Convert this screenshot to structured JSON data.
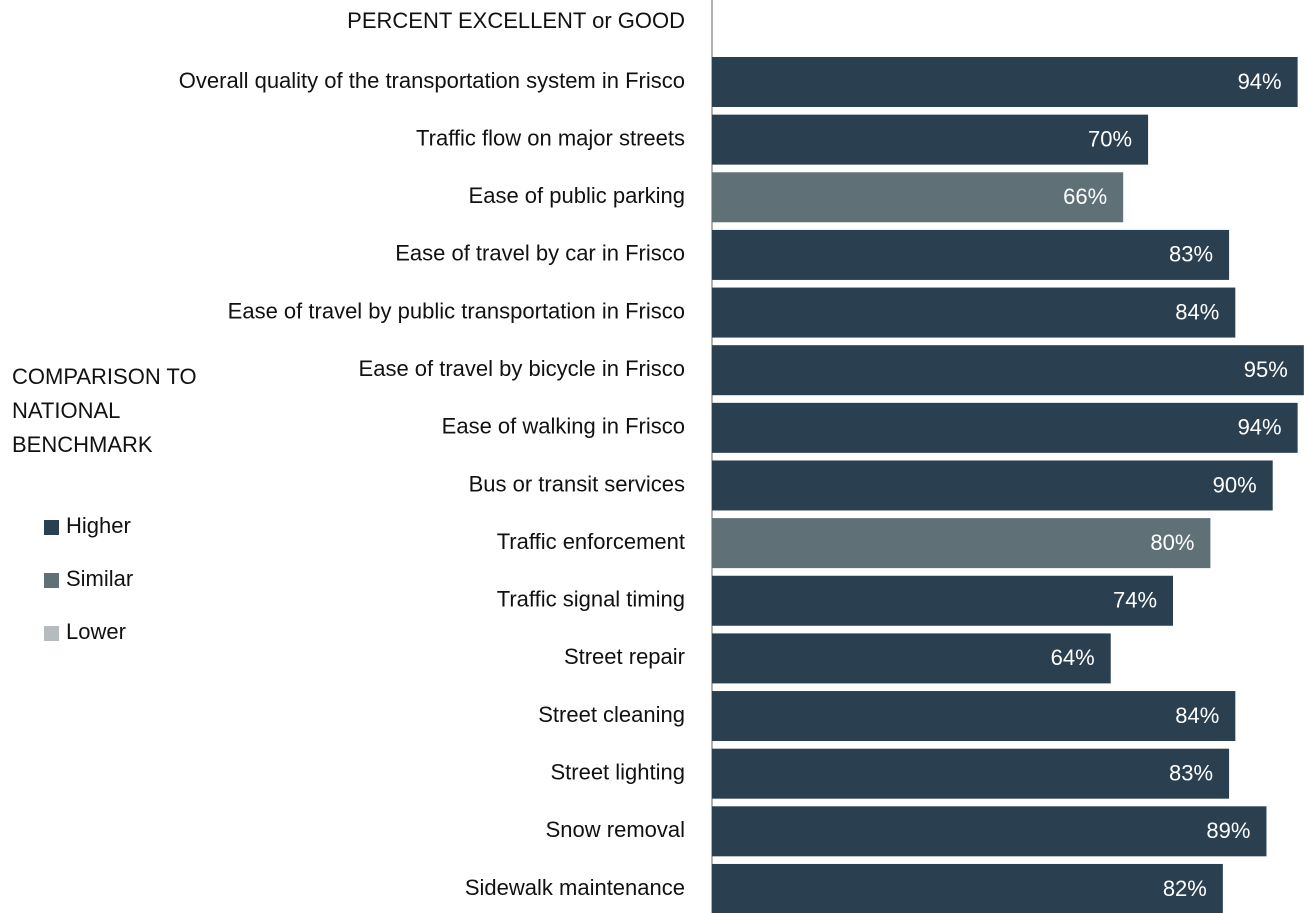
{
  "chart_data": {
    "type": "bar",
    "orientation": "horizontal",
    "title": "PERCENT EXCELLENT or GOOD",
    "categories": [
      "Overall quality of the transportation system in Frisco",
      "Traffic flow on major streets",
      "Ease of public parking",
      "Ease of travel by car in Frisco",
      "Ease of travel by public transportation in Frisco",
      "Ease of travel by bicycle in Frisco",
      "Ease of walking in Frisco",
      "Bus or transit services",
      "Traffic enforcement",
      "Traffic signal timing",
      "Street repair",
      "Street cleaning",
      "Street lighting",
      "Snow removal",
      "Sidewalk maintenance"
    ],
    "values": [
      94,
      70,
      66,
      83,
      84,
      95,
      94,
      90,
      80,
      74,
      64,
      84,
      83,
      89,
      82
    ],
    "value_labels": [
      "94%",
      "70%",
      "66%",
      "83%",
      "84%",
      "95%",
      "94%",
      "90%",
      "80%",
      "74%",
      "64%",
      "84%",
      "83%",
      "89%",
      "82%"
    ],
    "comparison": [
      "Higher",
      "Higher",
      "Similar",
      "Higher",
      "Higher",
      "Higher",
      "Higher",
      "Higher",
      "Similar",
      "Higher",
      "Higher",
      "Higher",
      "Higher",
      "Higher",
      "Higher"
    ],
    "legend_title": "COMPARISON TO NATIONAL BENCHMARK",
    "legend": [
      {
        "name": "Higher",
        "color": "#2a3f4f"
      },
      {
        "name": "Similar",
        "color": "#5f7077"
      },
      {
        "name": "Lower",
        "color": "#b4bcc0"
      }
    ],
    "xlim": [
      0,
      100
    ]
  }
}
